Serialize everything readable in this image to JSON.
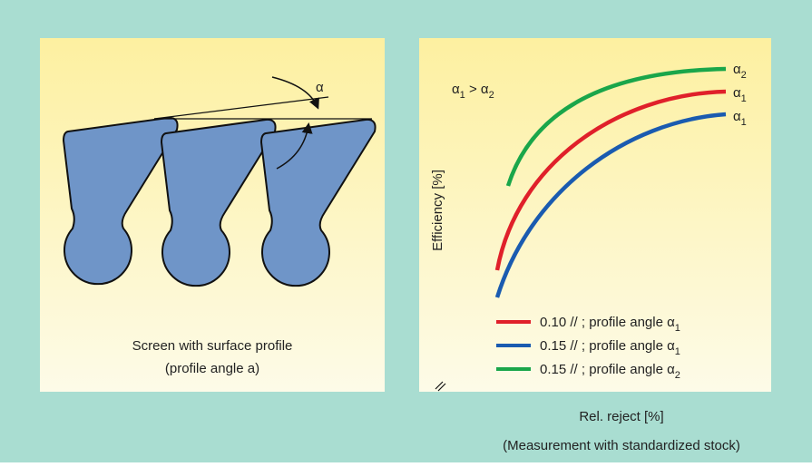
{
  "left_panel": {
    "angle_label": "α",
    "caption": [
      "Screen with surface profile",
      "(profile angle a)"
    ]
  },
  "right_panel": {
    "relation": {
      "symbol_a": "α",
      "sub_a": "1",
      "operator": " > ",
      "symbol_b": "α",
      "sub_b": "2"
    },
    "y_axis_label": "Efficiency [%]",
    "curve_labels": [
      {
        "symbol": "α",
        "sub": "2"
      },
      {
        "symbol": "α",
        "sub": "1"
      },
      {
        "symbol": "α",
        "sub": "1"
      }
    ],
    "legend": [
      {
        "text": "0.10 // ; profile angle ",
        "symbol": "α",
        "sub": "1"
      },
      {
        "text": "0.15 // ; profile angle ",
        "symbol": "α",
        "sub": "1"
      },
      {
        "text": "0.15 // ; profile angle ",
        "symbol": "α",
        "sub": "2"
      }
    ],
    "x_axis_label": [
      "Rel. reject [%]",
      "(Measurement with standardized stock)"
    ]
  }
}
